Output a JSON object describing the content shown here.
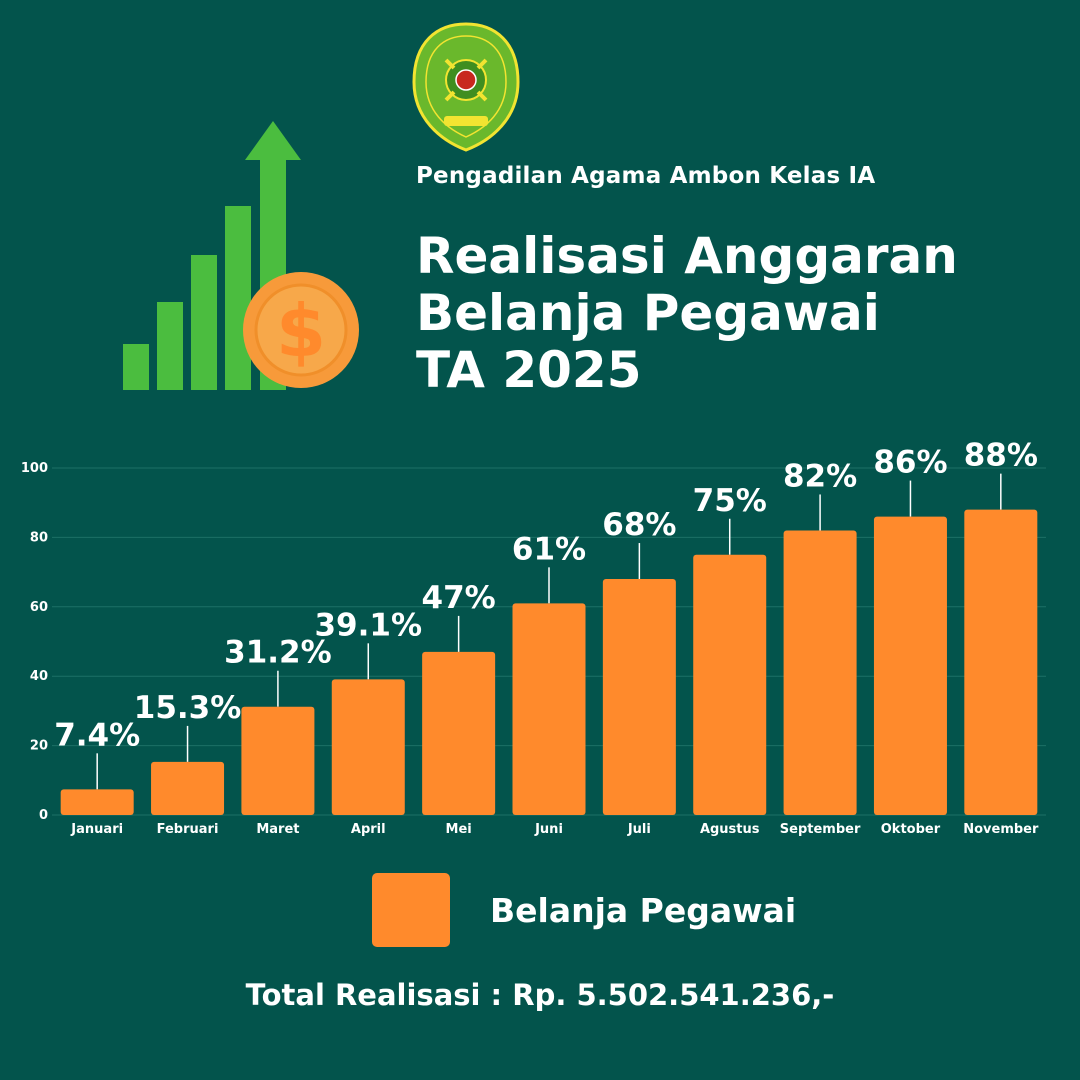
{
  "header": {
    "org_name": "Pengadilan Agama Ambon Kelas IA",
    "title_lines": [
      "Realisasi Anggaran",
      "Belanja Pegawai",
      "TA 2025"
    ],
    "logo_icon": "court-emblem-icon",
    "decoration_icon": "growth-chart-coin-icon",
    "coin_symbol": "$"
  },
  "footer": {
    "total_text": "Total Realisasi : Rp. 5.502.541.236,-"
  },
  "colors": {
    "background": "#03544c",
    "bar": "#ff8a2c",
    "text": "#ffffff",
    "growth_green": "#4bbd3f",
    "coin": "#f79a3a"
  },
  "chart_data": {
    "type": "bar",
    "categories": [
      "Januari",
      "Februari",
      "Maret",
      "April",
      "Mei",
      "Juni",
      "Juli",
      "Agustus",
      "September",
      "Oktober",
      "November"
    ],
    "series": [
      {
        "name": "Belanja Pegawai",
        "values": [
          7.4,
          15.3,
          31.2,
          39.1,
          47,
          61,
          68,
          75,
          82,
          86,
          88
        ],
        "labels": [
          "7.4%",
          "15.3%",
          "31.2%",
          "39.1%",
          "47%",
          "61%",
          "68%",
          "75%",
          "82%",
          "86%",
          "88%"
        ]
      }
    ],
    "ylim": [
      0,
      100
    ],
    "yticks": [
      0,
      20,
      40,
      60,
      80,
      100
    ],
    "grid": true,
    "legend": "bottom-center"
  }
}
